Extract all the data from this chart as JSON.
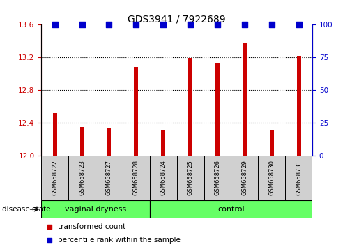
{
  "title": "GDS3941 / 7922689",
  "samples": [
    "GSM658722",
    "GSM658723",
    "GSM658727",
    "GSM658728",
    "GSM658724",
    "GSM658725",
    "GSM658726",
    "GSM658729",
    "GSM658730",
    "GSM658731"
  ],
  "bar_values": [
    12.52,
    12.35,
    12.34,
    13.08,
    12.31,
    13.19,
    13.13,
    13.38,
    12.31,
    13.22
  ],
  "percentile_values": [
    100,
    100,
    100,
    100,
    100,
    100,
    100,
    100,
    100,
    100
  ],
  "bar_color": "#cc0000",
  "dot_color": "#0000cc",
  "ylim_left": [
    12.0,
    13.6
  ],
  "ylim_right": [
    0,
    100
  ],
  "yticks_left": [
    12.0,
    12.4,
    12.8,
    13.2,
    13.6
  ],
  "yticks_right": [
    0,
    25,
    50,
    75,
    100
  ],
  "groups": [
    {
      "label": "vaginal dryness",
      "start": 0,
      "end": 4
    },
    {
      "label": "control",
      "start": 4,
      "end": 10
    }
  ],
  "group_color": "#66ff66",
  "group_border_color": "#000000",
  "sample_box_color": "#d0d0d0",
  "disease_state_label": "disease state",
  "legend_items": [
    {
      "label": "transformed count",
      "color": "#cc0000",
      "marker": "s"
    },
    {
      "label": "percentile rank within the sample",
      "color": "#0000cc",
      "marker": "s"
    }
  ],
  "bar_width": 0.15,
  "dot_size": 35,
  "background_color": "#ffffff"
}
